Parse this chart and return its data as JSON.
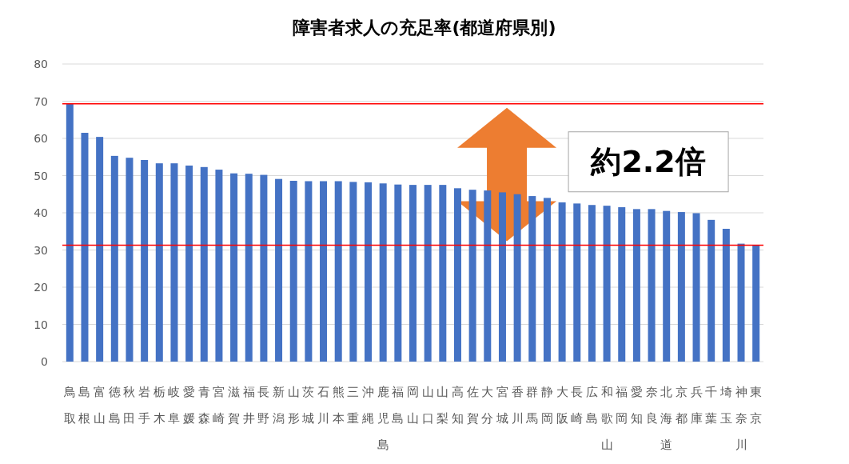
{
  "chart_data": {
    "type": "bar",
    "title": "障害者求人の充足率(都道府県別)",
    "categories": [
      "鳥取",
      "島根",
      "富山",
      "徳島",
      "秋田",
      "岩手",
      "栃木",
      "岐阜",
      "愛媛",
      "青森",
      "宮崎",
      "滋賀",
      "福井",
      "長野",
      "新潟",
      "山形",
      "茨城",
      "石川",
      "熊本",
      "三重",
      "沖縄",
      "鹿児島",
      "福島",
      "岡山",
      "山口",
      "山梨",
      "高知",
      "佐賀",
      "大分",
      "宮城",
      "香川",
      "群馬",
      "静岡",
      "大阪",
      "長崎",
      "広島",
      "和歌山",
      "福岡",
      "愛知",
      "奈良",
      "北海道",
      "京都",
      "兵庫",
      "千葉",
      "埼玉",
      "神奈川",
      "東京"
    ],
    "values": [
      69.3,
      61.5,
      60.4,
      55.3,
      54.8,
      54.2,
      53.3,
      53.3,
      52.7,
      52.3,
      51.6,
      50.6,
      50.5,
      50.2,
      49.1,
      48.6,
      48.5,
      48.5,
      48.5,
      48.3,
      48.2,
      47.9,
      47.6,
      47.5,
      47.5,
      47.5,
      46.6,
      46.2,
      46.0,
      45.5,
      45.0,
      44.5,
      44.0,
      42.8,
      42.5,
      42.1,
      41.9,
      41.5,
      41.0,
      41.0,
      40.5,
      40.2,
      39.9,
      38.1,
      35.7,
      31.7,
      31.3
    ],
    "color": "#4472c4",
    "ylim": [
      0,
      80
    ],
    "yticks": [
      0,
      10,
      20,
      30,
      40,
      50,
      60,
      70,
      80
    ],
    "grid": "y",
    "ref_lines": [
      {
        "axis": "y",
        "value": 69.3,
        "color": "#ff0000"
      },
      {
        "axis": "y",
        "value": 31.3,
        "color": "#ff0000"
      }
    ],
    "annotations": [
      "約2.2倍"
    ]
  }
}
